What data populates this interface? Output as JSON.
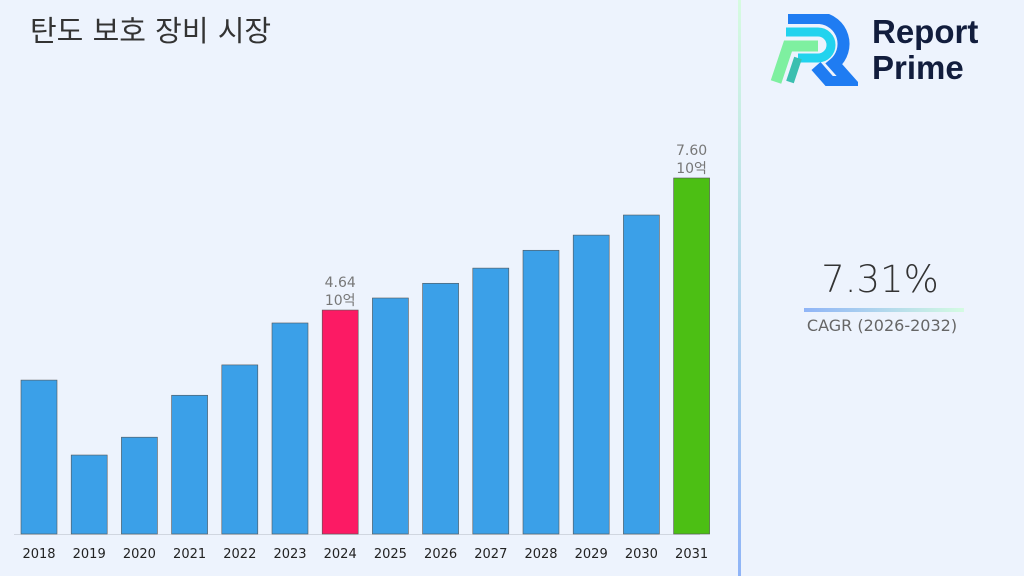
{
  "title": "탄도 보호 장비 시장",
  "logo": {
    "line1": "Report",
    "line2": "Prime"
  },
  "cagr": {
    "value": "7.31%",
    "label": "CAGR (2026-2032)"
  },
  "chart_data": {
    "type": "bar",
    "title": "탄도 보호 장비 시장",
    "categories": [
      "2018",
      "2019",
      "2020",
      "2021",
      "2022",
      "2023",
      "2024",
      "2025",
      "2026",
      "2027",
      "2028",
      "2029",
      "2030",
      "2031"
    ],
    "values": [
      3.07,
      1.39,
      1.79,
      2.73,
      3.41,
      4.35,
      4.64,
      4.91,
      5.24,
      5.58,
      5.98,
      6.32,
      6.77,
      7.6
    ],
    "unit": "10억",
    "data_labels": {
      "2024": "4.64",
      "2031": "7.60"
    },
    "colors": {
      "default": "#3ba0e8",
      "2024": "#fc1a64",
      "2031": "#4cbf14"
    },
    "ylim": [
      -0.38,
      7.6
    ],
    "grid": false,
    "legend": "none"
  }
}
